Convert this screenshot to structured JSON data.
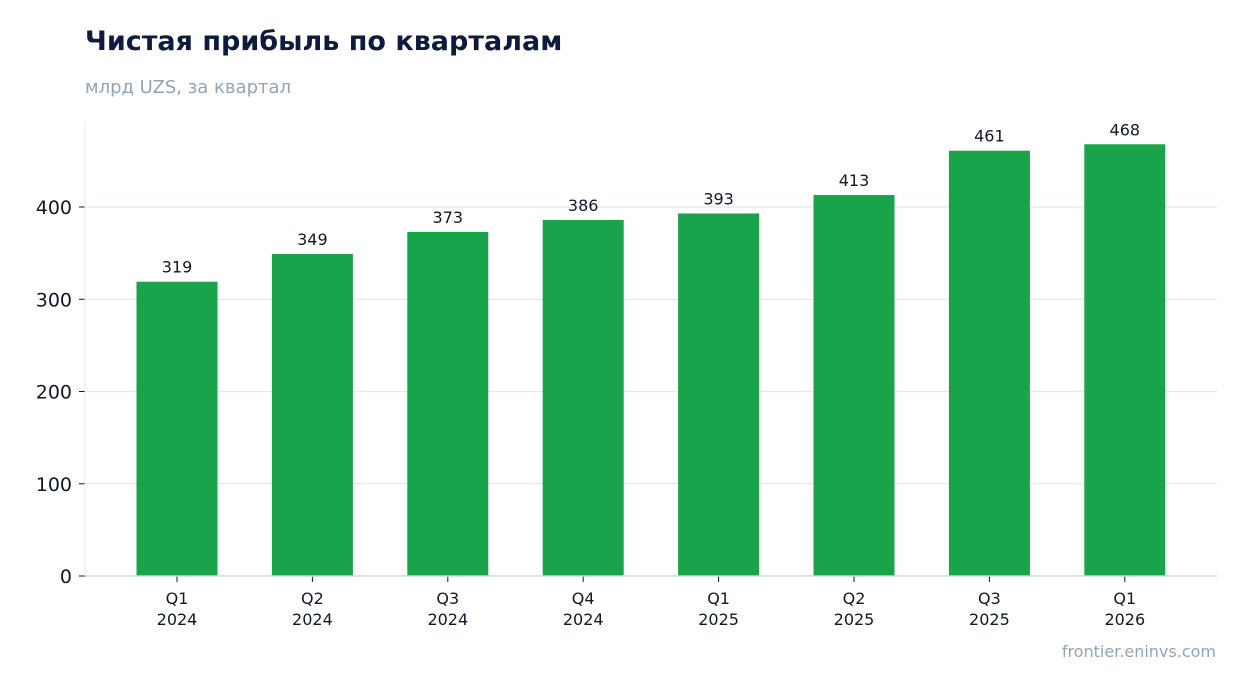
{
  "header": {
    "title": "Чистая прибыль по кварталам",
    "subtitle": "млрд UZS, за квартал"
  },
  "footer": {
    "source": "frontier.eninvs.com"
  },
  "colors": {
    "bar": "#19a34a",
    "title": "#0e1b3d",
    "muted": "#94a3b8",
    "grid": "#e2e8f0",
    "axis": "#cbd5e1",
    "text": "#111827"
  },
  "chart_data": {
    "type": "bar",
    "categories": [
      [
        "Q1",
        "2024"
      ],
      [
        "Q2",
        "2024"
      ],
      [
        "Q3",
        "2024"
      ],
      [
        "Q4",
        "2024"
      ],
      [
        "Q1",
        "2025"
      ],
      [
        "Q2",
        "2025"
      ],
      [
        "Q3",
        "2025"
      ],
      [
        "Q1",
        "2026"
      ]
    ],
    "values": [
      319,
      349,
      373,
      386,
      393,
      413,
      461,
      468
    ],
    "data_labels": [
      "319",
      "349",
      "373",
      "386",
      "393",
      "413",
      "461",
      "468"
    ],
    "yticks": [
      0,
      100,
      200,
      300,
      400
    ],
    "ylim": [
      0,
      490
    ],
    "grid": true,
    "legend": "none"
  }
}
